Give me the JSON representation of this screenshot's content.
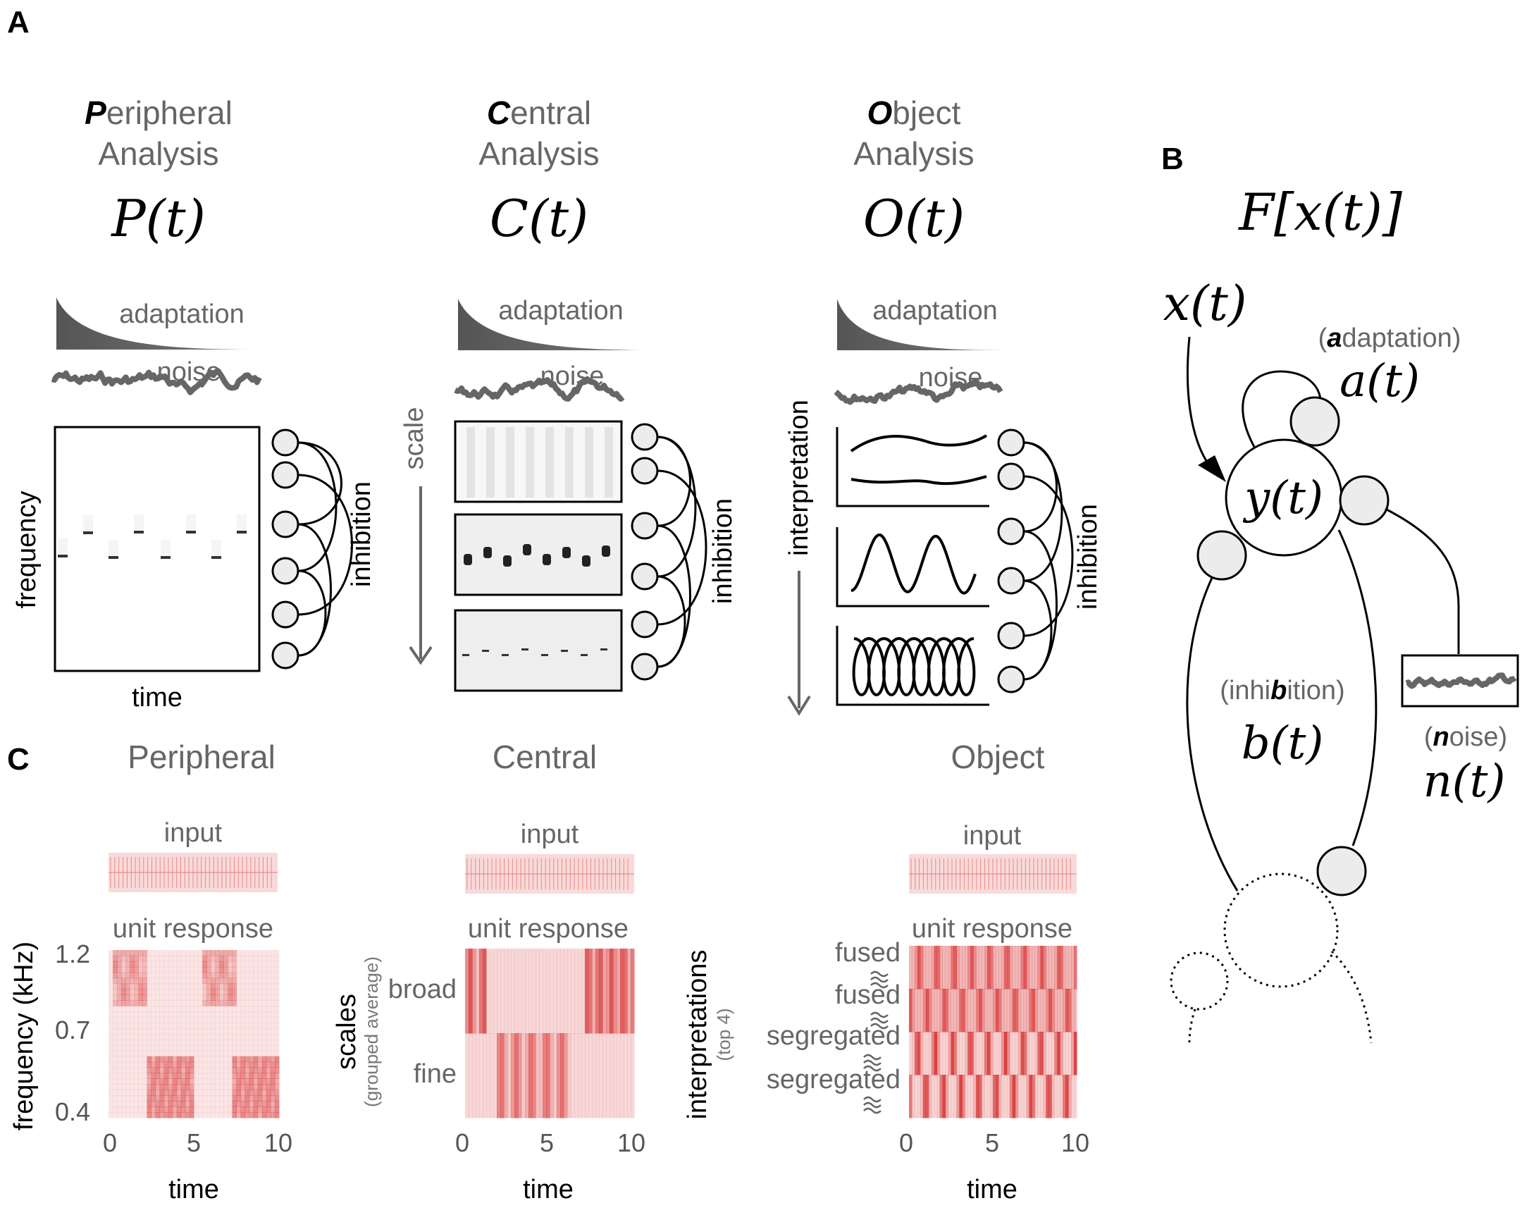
{
  "panel_letters": {
    "a": "A",
    "b": "B",
    "c": "C"
  },
  "panel_a": {
    "columns": [
      {
        "initial": "P",
        "title_rest": "eripheral",
        "title_line2": "Analysis",
        "func": "P(t)",
        "adaptation": "adaptation",
        "noise": "noise",
        "ylabel": "frequency",
        "xlabel": "time",
        "side": "inhibition"
      },
      {
        "initial": "C",
        "title_rest": "entral",
        "title_line2": "Analysis",
        "func": "C(t)",
        "adaptation": "adaptation",
        "noise": "noise",
        "axis_label": "scale",
        "side": "inhibition"
      },
      {
        "initial": "O",
        "title_rest": "bject",
        "title_line2": "Analysis",
        "func": "O(t)",
        "adaptation": "adaptation",
        "noise": "noise",
        "axis_label": "interpretation",
        "side": "inhibition"
      }
    ]
  },
  "panel_b": {
    "func": "F[x(t)]",
    "input": "x(t)",
    "unit": "y(t)",
    "adaptation": {
      "open": "(",
      "bold": "a",
      "rest": "daptation)",
      "func": "a(t)"
    },
    "inhibition": {
      "pre": "(inhi",
      "bold": "b",
      "rest": "ition)",
      "func": "b(t)"
    },
    "noise": {
      "open": "(",
      "bold": "n",
      "rest": "oise)",
      "func": "n(t)"
    }
  },
  "panel_c": {
    "peripheral": {
      "title": "Peripheral",
      "input": "input",
      "response": "unit response",
      "ylabel": "frequency (kHz)",
      "yticks": [
        "1.2",
        "0.7",
        "0.4"
      ],
      "xticks": [
        "0",
        "5",
        "10"
      ],
      "xlabel": "time"
    },
    "central": {
      "title": "Central",
      "input": "input",
      "response": "unit response",
      "ylabel": "scales",
      "ylabel_sub": "(grouped average)",
      "rows": [
        "broad",
        "fine"
      ],
      "xticks": [
        "0",
        "5",
        "10"
      ],
      "xlabel": "time"
    },
    "object": {
      "title": "Object",
      "input": "input",
      "response": "unit response",
      "ylabel": "interpretations",
      "ylabel_sub": "(top 4)",
      "rows": [
        "fused",
        "fused",
        "segregated",
        "segregated"
      ],
      "xticks": [
        "0",
        "5",
        "10"
      ],
      "xlabel": "time"
    }
  },
  "colors": {
    "response_red": "#d62a2a",
    "response_light": "#f8dada",
    "curve_grey": "#666666"
  }
}
